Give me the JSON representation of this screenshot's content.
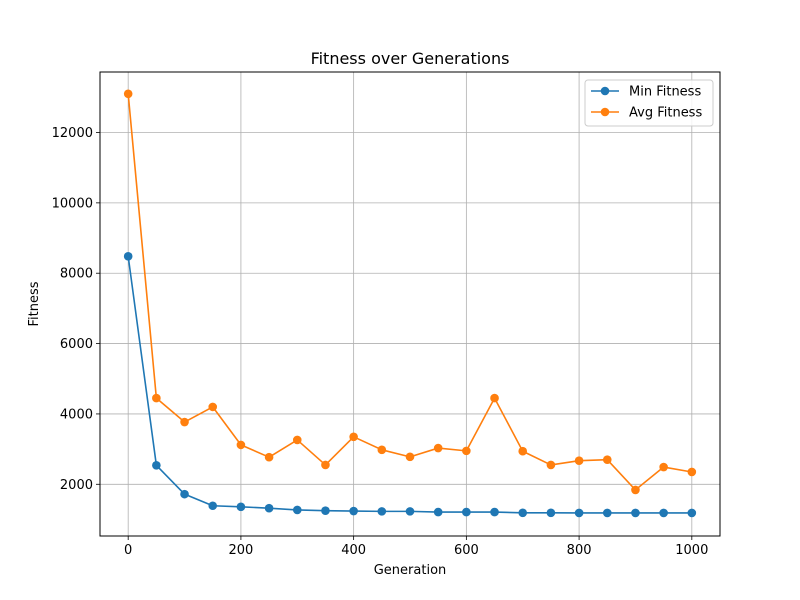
{
  "chart_data": {
    "type": "line",
    "title": "Fitness over Generations",
    "xlabel": "Generation",
    "ylabel": "Fitness",
    "xlim": [
      -50,
      1050
    ],
    "ylim": [
      530,
      13720
    ],
    "xticks": [
      0,
      200,
      400,
      600,
      800,
      1000
    ],
    "yticks": [
      2000,
      4000,
      6000,
      8000,
      10000,
      12000
    ],
    "grid": true,
    "legend_position": "top-right",
    "x": [
      0,
      50,
      100,
      150,
      200,
      250,
      300,
      350,
      400,
      450,
      500,
      550,
      600,
      650,
      700,
      750,
      800,
      850,
      900,
      950,
      1000
    ],
    "series": [
      {
        "name": "Min Fitness",
        "color": "#1f77b4",
        "marker": "circle",
        "values": [
          8480,
          2540,
          1720,
          1390,
          1360,
          1320,
          1270,
          1250,
          1240,
          1230,
          1230,
          1210,
          1210,
          1210,
          1190,
          1190,
          1185,
          1185,
          1185,
          1185,
          1185
        ]
      },
      {
        "name": "Avg Fitness",
        "color": "#ff7f0e",
        "marker": "circle",
        "values": [
          13100,
          4450,
          3770,
          4200,
          3120,
          2770,
          3260,
          2550,
          3350,
          2980,
          2780,
          3030,
          2950,
          4450,
          2940,
          2550,
          2670,
          2700,
          1840,
          2490,
          2350
        ]
      }
    ]
  }
}
